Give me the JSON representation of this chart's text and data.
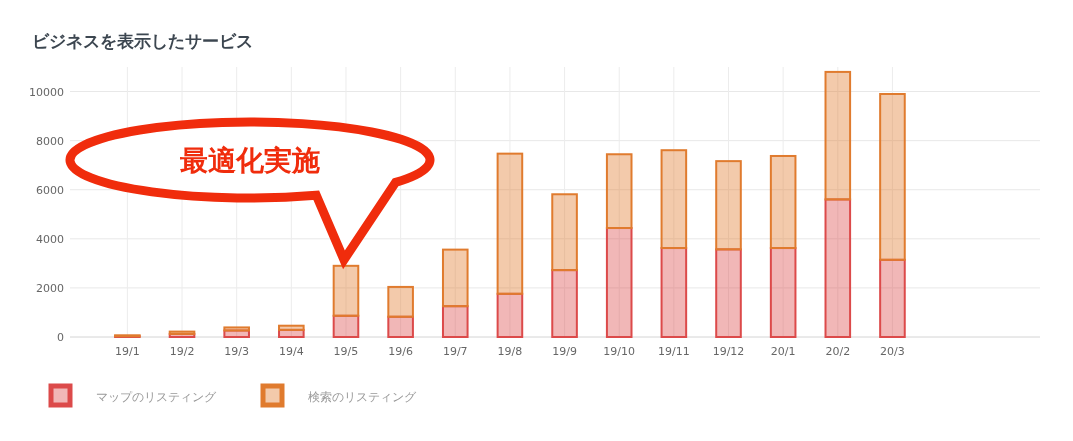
{
  "chart_data": {
    "type": "bar",
    "title": "ビジネスを表示したサービス",
    "stacked": true,
    "categories": [
      "19/1",
      "19/2",
      "19/3",
      "19/4",
      "19/5",
      "19/6",
      "19/7",
      "19/8",
      "19/9",
      "19/10",
      "19/11",
      "19/12",
      "20/1",
      "20/2",
      "20/3"
    ],
    "series": [
      {
        "name": "マップのリスティング",
        "color": "#dc4a4a",
        "values": [
          30,
          125,
          265,
          290,
          865,
          825,
          1255,
          1760,
          2725,
          4440,
          3625,
          3570,
          3625,
          5605,
          3145
        ]
      },
      {
        "name": "検索のリスティング",
        "color": "#e07b2e",
        "values": [
          40,
          95,
          125,
          170,
          2035,
          1215,
          2305,
          5710,
          3090,
          3005,
          3985,
          3595,
          3750,
          5195,
          6755
        ]
      }
    ],
    "ylim": [
      0,
      11000
    ],
    "yticks": [
      0,
      2000,
      4000,
      6000,
      8000,
      10000
    ],
    "grid": true,
    "legend": "bottom left",
    "annotations": [
      {
        "text": "最適化実施",
        "x": "19/5",
        "y": 2900
      }
    ]
  }
}
